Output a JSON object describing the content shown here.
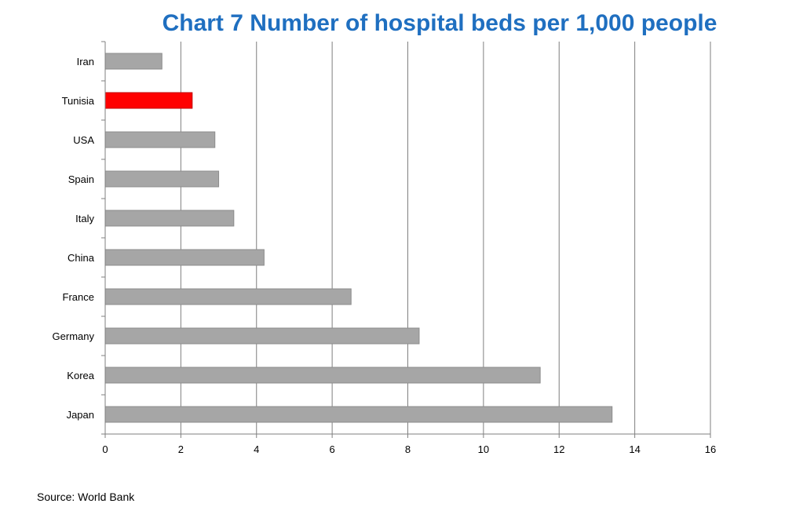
{
  "chart_data": {
    "type": "bar",
    "orientation": "horizontal",
    "title": "Chart 7 Number of hospital beds per 1,000 people",
    "xlabel": "",
    "ylabel": "",
    "categories": [
      "Iran",
      "Tunisia",
      "USA",
      "Spain",
      "Italy",
      "China",
      "France",
      "Germany",
      "Korea",
      "Japan"
    ],
    "values": [
      1.5,
      2.3,
      2.9,
      3.0,
      3.4,
      4.2,
      6.5,
      8.3,
      11.5,
      13.4
    ],
    "xlim": [
      0,
      16
    ],
    "x_ticks": [
      "0",
      "2",
      "4",
      "6",
      "8",
      "10",
      "12",
      "14",
      "16"
    ],
    "grid": "vertical",
    "legend": "none",
    "highlight_category": "Tunisia",
    "colors": {
      "bar": "#a6a6a6",
      "bar_border": "#8c8c8c",
      "highlight": "#ff0000",
      "highlight_border": "#c00000",
      "gridline": "#7f7f7f",
      "title": "#1f6fc0"
    },
    "source": "Source: World Bank"
  }
}
